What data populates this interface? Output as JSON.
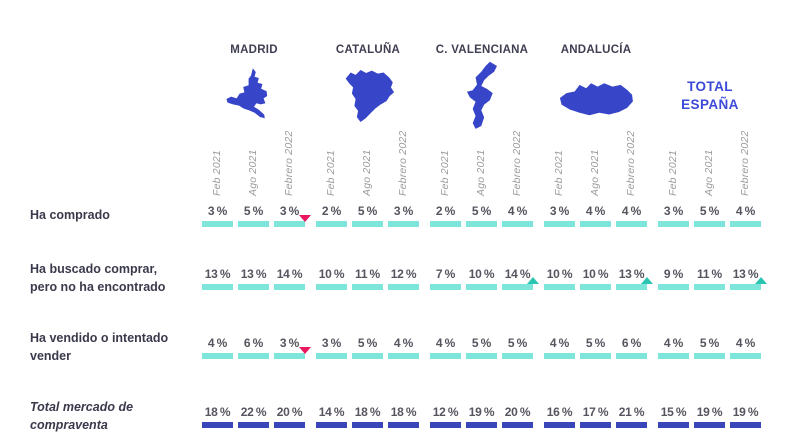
{
  "colors": {
    "map_blue": "#3745c8",
    "total_blue": "#3c4ad9",
    "header_text": "#3f3f52",
    "label_text": "#3a3a4c",
    "value_text": "#55555f",
    "date_text": "#9b9b9b",
    "teal_bar": "#7de5da",
    "indigo_bar": "#3a45ba",
    "marker_down_pink": "#e8175e",
    "marker_up_teal": "#2cc5b2"
  },
  "columns": [
    {
      "name": "MADRID"
    },
    {
      "name": "CATALUÑA"
    },
    {
      "name": "C. VALENCIANA"
    },
    {
      "name": "ANDALUCÍA"
    },
    {
      "name": "TOTAL ESPAÑA"
    }
  ],
  "total_label_lines": [
    "TOTAL",
    "ESPAÑA"
  ],
  "periods": [
    "Feb 2021",
    "Ago 2021",
    "Febrero 2022"
  ],
  "unit": "%",
  "rows": [
    {
      "label": "Ha comprado",
      "emphasis": false,
      "bar": "teal",
      "cells": [
        {
          "values": [
            3,
            5,
            3
          ],
          "marker": {
            "index": 2,
            "dir": "down"
          }
        },
        {
          "values": [
            2,
            5,
            3
          ]
        },
        {
          "values": [
            2,
            5,
            4
          ]
        },
        {
          "values": [
            3,
            4,
            4
          ]
        },
        {
          "values": [
            3,
            5,
            4
          ]
        }
      ]
    },
    {
      "label": "Ha buscado comprar, pero no ha encontrado",
      "emphasis": false,
      "bar": "teal",
      "cells": [
        {
          "values": [
            13,
            13,
            14
          ]
        },
        {
          "values": [
            10,
            11,
            12
          ]
        },
        {
          "values": [
            7,
            10,
            14
          ],
          "marker": {
            "index": 2,
            "dir": "up"
          }
        },
        {
          "values": [
            10,
            10,
            13
          ],
          "marker": {
            "index": 2,
            "dir": "up"
          }
        },
        {
          "values": [
            9,
            11,
            13
          ],
          "marker": {
            "index": 2,
            "dir": "up"
          }
        }
      ]
    },
    {
      "label": "Ha vendido o intentado vender",
      "emphasis": false,
      "bar": "teal",
      "cells": [
        {
          "values": [
            4,
            6,
            3
          ],
          "marker": {
            "index": 2,
            "dir": "down"
          }
        },
        {
          "values": [
            3,
            5,
            4
          ]
        },
        {
          "values": [
            4,
            5,
            5
          ]
        },
        {
          "values": [
            4,
            5,
            6
          ]
        },
        {
          "values": [
            4,
            5,
            4
          ]
        }
      ]
    },
    {
      "label": "Total mercado de compraventa",
      "emphasis": true,
      "bar": "indigo",
      "cells": [
        {
          "values": [
            18,
            22,
            20
          ]
        },
        {
          "values": [
            14,
            18,
            18
          ]
        },
        {
          "values": [
            12,
            19,
            20
          ]
        },
        {
          "values": [
            16,
            17,
            21
          ]
        },
        {
          "values": [
            15,
            19,
            19
          ]
        }
      ]
    }
  ],
  "chart_data": {
    "type": "table",
    "title": "",
    "columns": [
      "MADRID",
      "CATALUÑA",
      "C. VALENCIANA",
      "ANDALUCÍA",
      "TOTAL ESPAÑA"
    ],
    "periods": [
      "Feb 2021",
      "Ago 2021",
      "Febrero 2022"
    ],
    "unit": "%",
    "rows": [
      {
        "label": "Ha comprado",
        "values": [
          [
            3,
            5,
            3
          ],
          [
            2,
            5,
            3
          ],
          [
            2,
            5,
            4
          ],
          [
            3,
            4,
            4
          ],
          [
            3,
            5,
            4
          ]
        ],
        "trend_markers": [
          {
            "column": "MADRID",
            "period": "Febrero 2022",
            "direction": "down"
          }
        ]
      },
      {
        "label": "Ha buscado comprar, pero no ha encontrado",
        "values": [
          [
            13,
            13,
            14
          ],
          [
            10,
            11,
            12
          ],
          [
            7,
            10,
            14
          ],
          [
            10,
            10,
            13
          ],
          [
            9,
            11,
            13
          ]
        ],
        "trend_markers": [
          {
            "column": "C. VALENCIANA",
            "period": "Febrero 2022",
            "direction": "up"
          },
          {
            "column": "ANDALUCÍA",
            "period": "Febrero 2022",
            "direction": "up"
          },
          {
            "column": "TOTAL ESPAÑA",
            "period": "Febrero 2022",
            "direction": "up"
          }
        ]
      },
      {
        "label": "Ha vendido o intentado vender",
        "values": [
          [
            4,
            6,
            3
          ],
          [
            3,
            5,
            4
          ],
          [
            4,
            5,
            5
          ],
          [
            4,
            5,
            6
          ],
          [
            4,
            5,
            4
          ]
        ],
        "trend_markers": [
          {
            "column": "MADRID",
            "period": "Febrero 2022",
            "direction": "down"
          }
        ]
      },
      {
        "label": "Total mercado de compraventa",
        "values": [
          [
            18,
            22,
            20
          ],
          [
            14,
            18,
            18
          ],
          [
            12,
            19,
            20
          ],
          [
            16,
            17,
            21
          ],
          [
            15,
            19,
            19
          ]
        ],
        "trend_markers": []
      }
    ]
  }
}
